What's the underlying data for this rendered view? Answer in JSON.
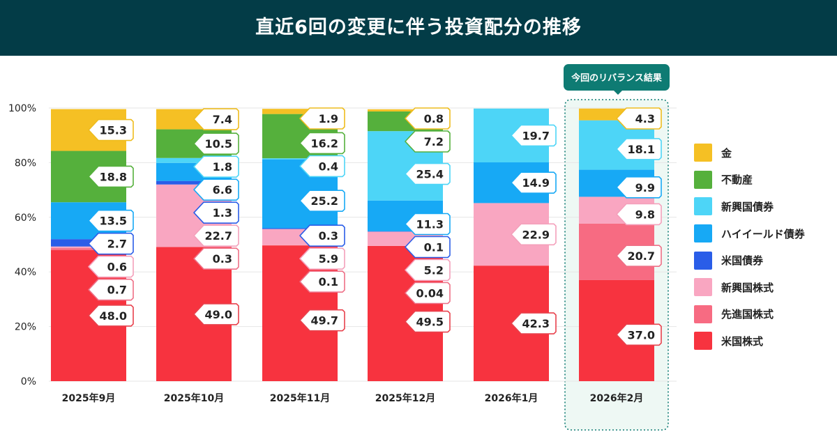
{
  "title": "直近6回の変更に伴う投資配分の推移",
  "callout": "今回のリバランス結果",
  "chart_data": {
    "type": "bar",
    "stacked": true,
    "title": "直近6回の変更に伴う投資配分の推移",
    "xlabel": "",
    "ylabel": "",
    "ylim": [
      0,
      100
    ],
    "yticks": [
      "0%",
      "20%",
      "40%",
      "60%",
      "80%",
      "100%"
    ],
    "grid": true,
    "legend_position": "right",
    "categories": [
      "2025年9月",
      "2025年10月",
      "2025年11月",
      "2025年12月",
      "2026年1月",
      "2026年2月"
    ],
    "highlighted_category": "2026年2月",
    "series": [
      {
        "name": "米国株式",
        "color": "#f7333f",
        "label_border": "#e8414c",
        "values": [
          48.0,
          49.0,
          49.7,
          49.5,
          42.3,
          37.0
        ]
      },
      {
        "name": "先進国株式",
        "color": "#f76b82",
        "label_border": "#ee6f86",
        "values": [
          0.7,
          0.3,
          0.1,
          0.04,
          0,
          20.7
        ]
      },
      {
        "name": "新興国株式",
        "color": "#f9a6c1",
        "label_border": "#f4a0bb",
        "values": [
          0.6,
          22.7,
          5.9,
          5.2,
          22.9,
          9.8
        ]
      },
      {
        "name": "米国債券",
        "color": "#2a5de8",
        "label_border": "#2a5de8",
        "values": [
          2.7,
          1.3,
          0.3,
          0.1,
          0,
          0
        ]
      },
      {
        "name": "ハイイールド債券",
        "color": "#17a9f5",
        "label_border": "#17a9f5",
        "values": [
          13.5,
          6.6,
          25.2,
          11.3,
          14.9,
          9.9
        ]
      },
      {
        "name": "新興国債券",
        "color": "#4dd5f7",
        "label_border": "#4dd5f7",
        "values": [
          0,
          1.8,
          0.4,
          25.4,
          19.7,
          18.1
        ]
      },
      {
        "name": "不動産",
        "color": "#55b03c",
        "label_border": "#55b03c",
        "values": [
          18.8,
          10.5,
          16.2,
          7.2,
          0,
          0
        ]
      },
      {
        "name": "金",
        "color": "#f5c024",
        "label_border": "#eebc1e",
        "values": [
          15.3,
          7.4,
          1.9,
          0.8,
          0,
          4.3
        ]
      }
    ],
    "data_labels": [
      [
        "48.0",
        "49.0",
        "49.7",
        "49.5",
        "42.3",
        "37.0"
      ],
      [
        "0.7",
        "0.3",
        "0.1",
        "0.04",
        "",
        "20.7"
      ],
      [
        "0.6",
        "22.7",
        "5.9",
        "5.2",
        "22.9",
        "9.8"
      ],
      [
        "2.7",
        "1.3",
        "0.3",
        "0.1",
        "",
        ""
      ],
      [
        "13.5",
        "6.6",
        "25.2",
        "11.3",
        "14.9",
        "9.9"
      ],
      [
        "",
        "1.8",
        "0.4",
        "25.4",
        "19.7",
        "18.1"
      ],
      [
        "18.8",
        "10.5",
        "16.2",
        "7.2",
        "",
        ""
      ],
      [
        "15.3",
        "7.4",
        "1.9",
        "0.8",
        "",
        "4.3"
      ]
    ]
  },
  "colors": {
    "title_bg": "#033c47",
    "highlight": "#0e7b73",
    "highlight_bg": "#eef8f4"
  }
}
